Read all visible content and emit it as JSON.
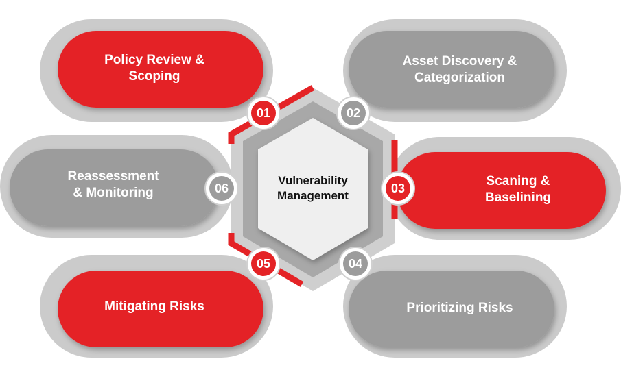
{
  "center": {
    "line1": "Vulnerability",
    "line2": "Management"
  },
  "colors": {
    "red": "#e42326",
    "gray": "#9c9c9c",
    "outer_gray": "#c8c8c8",
    "hex_fill": "#efefef"
  },
  "steps": [
    {
      "number": "01",
      "line1": "Policy Review &",
      "line2": "Scoping",
      "color": "red"
    },
    {
      "number": "02",
      "line1": "Asset Discovery &",
      "line2": "Categorization",
      "color": "gray"
    },
    {
      "number": "03",
      "line1": "Scaning &",
      "line2": "Baselining",
      "color": "red"
    },
    {
      "number": "04",
      "line1": "Prioritizing Risks",
      "line2": "",
      "color": "gray"
    },
    {
      "number": "05",
      "line1": "Mitigating Risks",
      "line2": "",
      "color": "red"
    },
    {
      "number": "06",
      "line1": "Reassessment",
      "line2": "& Monitoring",
      "color": "gray"
    }
  ]
}
